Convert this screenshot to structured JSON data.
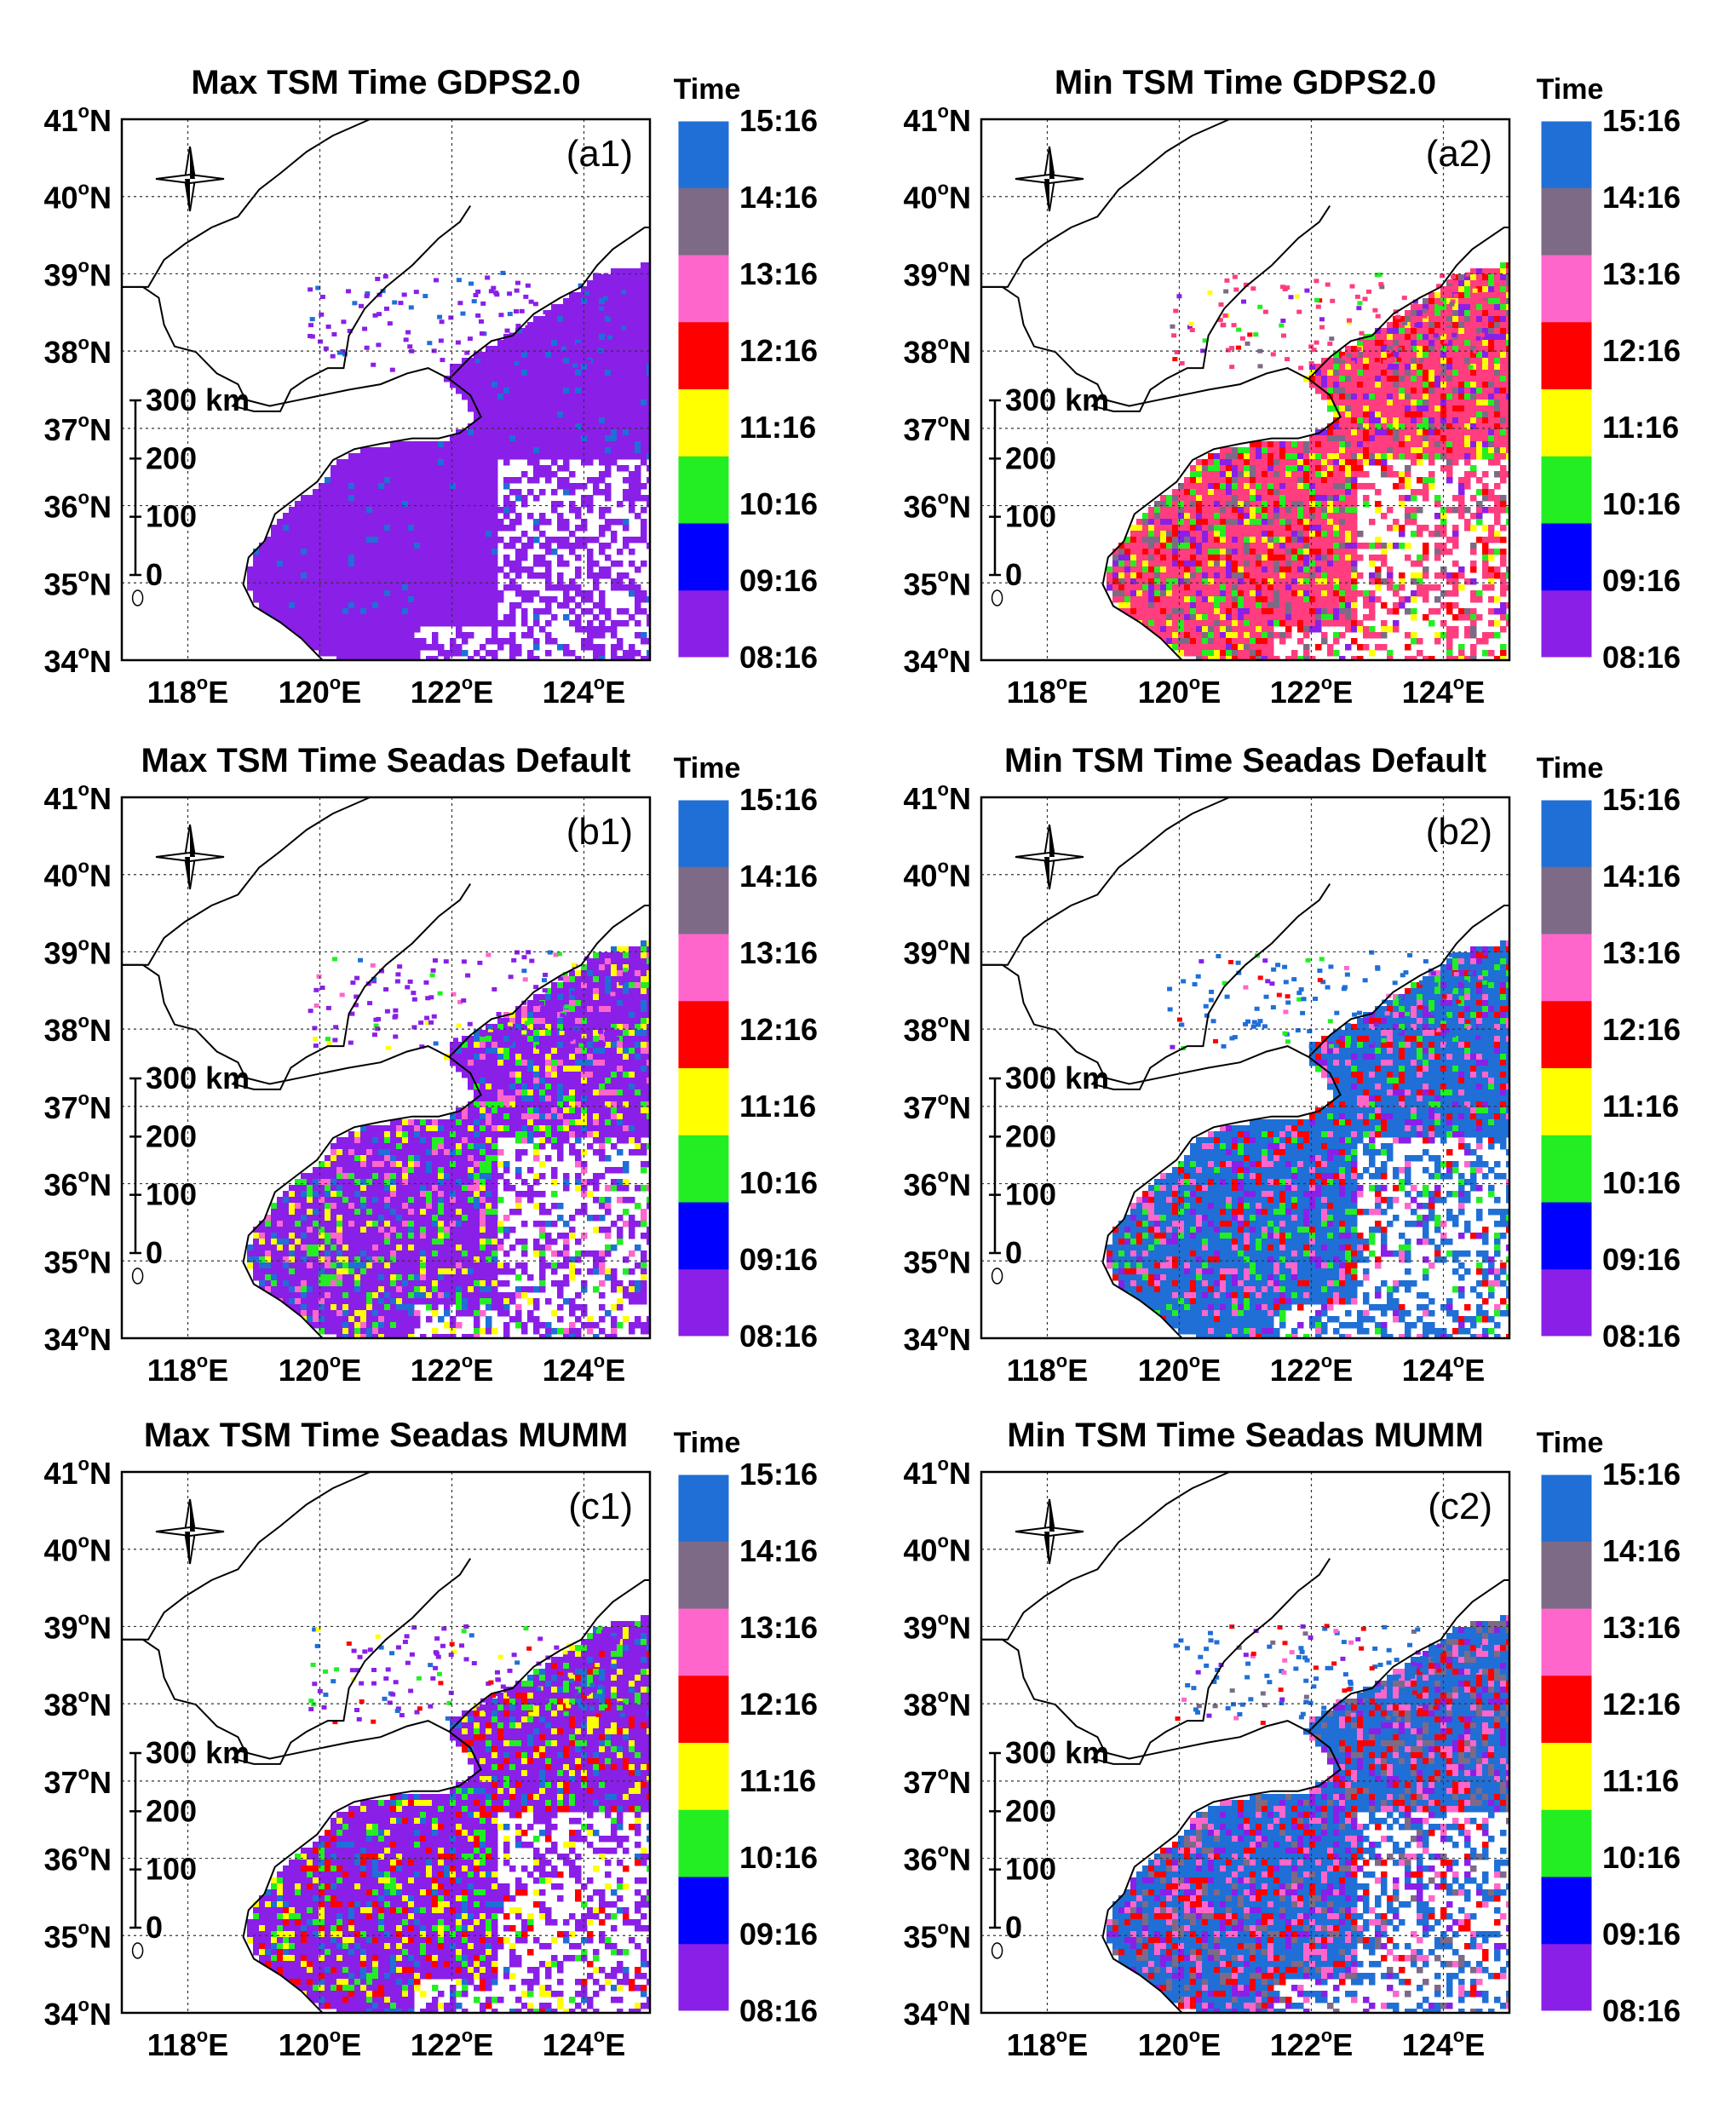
{
  "colorbar": {
    "title": "Time",
    "ticks": [
      "15:16",
      "14:16",
      "13:16",
      "12:16",
      "11:16",
      "10:16",
      "09:16",
      "08:16"
    ],
    "colors": [
      "#1f6fd6",
      "#7c6a86",
      "#ff66cc",
      "#ff0000",
      "#ffff00",
      "#22ee22",
      "#0000ff",
      "#8a1fe8"
    ]
  },
  "axes": {
    "lat_labels": [
      "41",
      "40",
      "39",
      "38",
      "37",
      "36",
      "35",
      "34"
    ],
    "lat_suffix": "N",
    "lon_labels": [
      "118",
      "120",
      "122",
      "124"
    ],
    "lon_suffix": "E",
    "degree_mark": "o",
    "lat_range": [
      34,
      41
    ],
    "lon_range": [
      117,
      125
    ],
    "grid": true
  },
  "scale_bar": {
    "labels": [
      "300 km",
      "200",
      "100",
      "0"
    ]
  },
  "panels": [
    {
      "title": "Max TSM Time GDPS2.0",
      "tag": "(a1)",
      "dominant": "#8a1fe8",
      "mix": [
        "#1f6fd6",
        "#8a1fe8"
      ],
      "mix_weight": 0.08
    },
    {
      "title": "Min TSM Time GDPS2.0",
      "tag": "(a2)",
      "dominant": "#ff3d7f",
      "mix": [
        "#7c6a86",
        "#ff0000",
        "#8a1fe8",
        "#ffff00",
        "#22ee22"
      ],
      "mix_weight": 0.45
    },
    {
      "title": "Max TSM Time Seadas Default",
      "tag": "(b1)",
      "dominant": "#8a1fe8",
      "mix": [
        "#ffff00",
        "#22ee22",
        "#ff66cc",
        "#1f6fd6"
      ],
      "mix_weight": 0.35
    },
    {
      "title": "Min TSM Time Seadas Default",
      "tag": "(b2)",
      "dominant": "#1f6fd6",
      "mix": [
        "#ff0000",
        "#ff66cc",
        "#8a1fe8",
        "#22ee22"
      ],
      "mix_weight": 0.35
    },
    {
      "title": "Max TSM Time Seadas MUMM",
      "tag": "(c1)",
      "dominant": "#8a1fe8",
      "mix": [
        "#1f6fd6",
        "#ffff00",
        "#ff0000",
        "#22ee22"
      ],
      "mix_weight": 0.35
    },
    {
      "title": "Min TSM Time Seadas MUMM",
      "tag": "(c2)",
      "dominant": "#1f6fd6",
      "mix": [
        "#ff66cc",
        "#8a1fe8",
        "#ff0000",
        "#7c6a86"
      ],
      "mix_weight": 0.45
    }
  ]
}
